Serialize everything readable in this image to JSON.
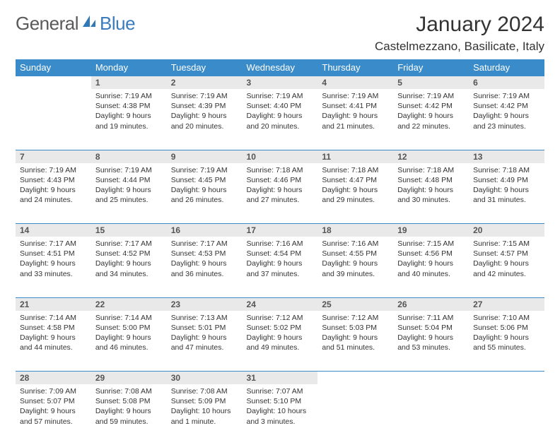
{
  "logo": {
    "text1": "General",
    "text2": "Blue"
  },
  "title": "January 2024",
  "location": "Castelmezzano, Basilicate, Italy",
  "colors": {
    "header_bg": "#3a8bc9",
    "header_text": "#ffffff",
    "daynum_bg": "#e9e9e9",
    "row_border": "#3a8bc9",
    "logo_gray": "#5a5a5a",
    "logo_blue": "#3a7cbf",
    "body_text": "#333333"
  },
  "weekdays": [
    "Sunday",
    "Monday",
    "Tuesday",
    "Wednesday",
    "Thursday",
    "Friday",
    "Saturday"
  ],
  "weeks": [
    [
      null,
      {
        "n": "1",
        "sr": "Sunrise: 7:19 AM",
        "ss": "Sunset: 4:38 PM",
        "d1": "Daylight: 9 hours",
        "d2": "and 19 minutes."
      },
      {
        "n": "2",
        "sr": "Sunrise: 7:19 AM",
        "ss": "Sunset: 4:39 PM",
        "d1": "Daylight: 9 hours",
        "d2": "and 20 minutes."
      },
      {
        "n": "3",
        "sr": "Sunrise: 7:19 AM",
        "ss": "Sunset: 4:40 PM",
        "d1": "Daylight: 9 hours",
        "d2": "and 20 minutes."
      },
      {
        "n": "4",
        "sr": "Sunrise: 7:19 AM",
        "ss": "Sunset: 4:41 PM",
        "d1": "Daylight: 9 hours",
        "d2": "and 21 minutes."
      },
      {
        "n": "5",
        "sr": "Sunrise: 7:19 AM",
        "ss": "Sunset: 4:42 PM",
        "d1": "Daylight: 9 hours",
        "d2": "and 22 minutes."
      },
      {
        "n": "6",
        "sr": "Sunrise: 7:19 AM",
        "ss": "Sunset: 4:42 PM",
        "d1": "Daylight: 9 hours",
        "d2": "and 23 minutes."
      }
    ],
    [
      {
        "n": "7",
        "sr": "Sunrise: 7:19 AM",
        "ss": "Sunset: 4:43 PM",
        "d1": "Daylight: 9 hours",
        "d2": "and 24 minutes."
      },
      {
        "n": "8",
        "sr": "Sunrise: 7:19 AM",
        "ss": "Sunset: 4:44 PM",
        "d1": "Daylight: 9 hours",
        "d2": "and 25 minutes."
      },
      {
        "n": "9",
        "sr": "Sunrise: 7:19 AM",
        "ss": "Sunset: 4:45 PM",
        "d1": "Daylight: 9 hours",
        "d2": "and 26 minutes."
      },
      {
        "n": "10",
        "sr": "Sunrise: 7:18 AM",
        "ss": "Sunset: 4:46 PM",
        "d1": "Daylight: 9 hours",
        "d2": "and 27 minutes."
      },
      {
        "n": "11",
        "sr": "Sunrise: 7:18 AM",
        "ss": "Sunset: 4:47 PM",
        "d1": "Daylight: 9 hours",
        "d2": "and 29 minutes."
      },
      {
        "n": "12",
        "sr": "Sunrise: 7:18 AM",
        "ss": "Sunset: 4:48 PM",
        "d1": "Daylight: 9 hours",
        "d2": "and 30 minutes."
      },
      {
        "n": "13",
        "sr": "Sunrise: 7:18 AM",
        "ss": "Sunset: 4:49 PM",
        "d1": "Daylight: 9 hours",
        "d2": "and 31 minutes."
      }
    ],
    [
      {
        "n": "14",
        "sr": "Sunrise: 7:17 AM",
        "ss": "Sunset: 4:51 PM",
        "d1": "Daylight: 9 hours",
        "d2": "and 33 minutes."
      },
      {
        "n": "15",
        "sr": "Sunrise: 7:17 AM",
        "ss": "Sunset: 4:52 PM",
        "d1": "Daylight: 9 hours",
        "d2": "and 34 minutes."
      },
      {
        "n": "16",
        "sr": "Sunrise: 7:17 AM",
        "ss": "Sunset: 4:53 PM",
        "d1": "Daylight: 9 hours",
        "d2": "and 36 minutes."
      },
      {
        "n": "17",
        "sr": "Sunrise: 7:16 AM",
        "ss": "Sunset: 4:54 PM",
        "d1": "Daylight: 9 hours",
        "d2": "and 37 minutes."
      },
      {
        "n": "18",
        "sr": "Sunrise: 7:16 AM",
        "ss": "Sunset: 4:55 PM",
        "d1": "Daylight: 9 hours",
        "d2": "and 39 minutes."
      },
      {
        "n": "19",
        "sr": "Sunrise: 7:15 AM",
        "ss": "Sunset: 4:56 PM",
        "d1": "Daylight: 9 hours",
        "d2": "and 40 minutes."
      },
      {
        "n": "20",
        "sr": "Sunrise: 7:15 AM",
        "ss": "Sunset: 4:57 PM",
        "d1": "Daylight: 9 hours",
        "d2": "and 42 minutes."
      }
    ],
    [
      {
        "n": "21",
        "sr": "Sunrise: 7:14 AM",
        "ss": "Sunset: 4:58 PM",
        "d1": "Daylight: 9 hours",
        "d2": "and 44 minutes."
      },
      {
        "n": "22",
        "sr": "Sunrise: 7:14 AM",
        "ss": "Sunset: 5:00 PM",
        "d1": "Daylight: 9 hours",
        "d2": "and 46 minutes."
      },
      {
        "n": "23",
        "sr": "Sunrise: 7:13 AM",
        "ss": "Sunset: 5:01 PM",
        "d1": "Daylight: 9 hours",
        "d2": "and 47 minutes."
      },
      {
        "n": "24",
        "sr": "Sunrise: 7:12 AM",
        "ss": "Sunset: 5:02 PM",
        "d1": "Daylight: 9 hours",
        "d2": "and 49 minutes."
      },
      {
        "n": "25",
        "sr": "Sunrise: 7:12 AM",
        "ss": "Sunset: 5:03 PM",
        "d1": "Daylight: 9 hours",
        "d2": "and 51 minutes."
      },
      {
        "n": "26",
        "sr": "Sunrise: 7:11 AM",
        "ss": "Sunset: 5:04 PM",
        "d1": "Daylight: 9 hours",
        "d2": "and 53 minutes."
      },
      {
        "n": "27",
        "sr": "Sunrise: 7:10 AM",
        "ss": "Sunset: 5:06 PM",
        "d1": "Daylight: 9 hours",
        "d2": "and 55 minutes."
      }
    ],
    [
      {
        "n": "28",
        "sr": "Sunrise: 7:09 AM",
        "ss": "Sunset: 5:07 PM",
        "d1": "Daylight: 9 hours",
        "d2": "and 57 minutes."
      },
      {
        "n": "29",
        "sr": "Sunrise: 7:08 AM",
        "ss": "Sunset: 5:08 PM",
        "d1": "Daylight: 9 hours",
        "d2": "and 59 minutes."
      },
      {
        "n": "30",
        "sr": "Sunrise: 7:08 AM",
        "ss": "Sunset: 5:09 PM",
        "d1": "Daylight: 10 hours",
        "d2": "and 1 minute."
      },
      {
        "n": "31",
        "sr": "Sunrise: 7:07 AM",
        "ss": "Sunset: 5:10 PM",
        "d1": "Daylight: 10 hours",
        "d2": "and 3 minutes."
      },
      null,
      null,
      null
    ]
  ]
}
